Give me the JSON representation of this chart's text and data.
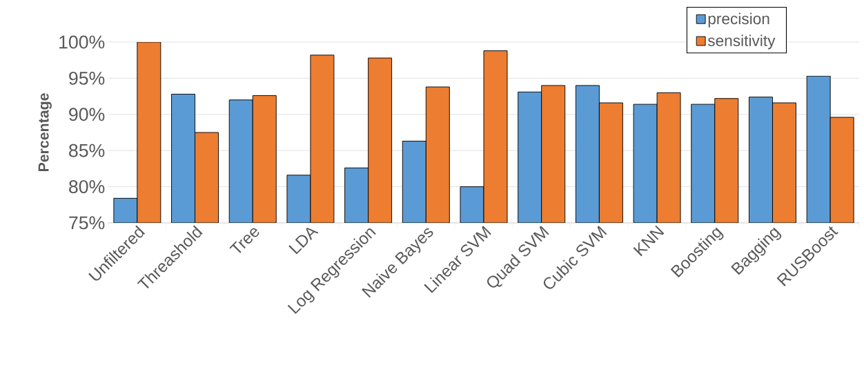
{
  "chart_data": {
    "type": "bar",
    "ylabel": "Percentage",
    "categories": [
      "Unfiltered",
      "Threashold",
      "Tree",
      "LDA",
      "Log Regression",
      "Naive Bayes",
      "Linear SVM",
      "Quad SVM",
      "Cubic SVM",
      "KNN",
      "Boosting",
      "Bagging",
      "RUSBoost"
    ],
    "series": [
      {
        "name": "precision",
        "color": "#5b9bd5",
        "values": [
          78.4,
          92.8,
          92.0,
          81.6,
          82.6,
          86.3,
          80.0,
          93.1,
          94.0,
          91.4,
          91.4,
          92.4,
          95.3
        ]
      },
      {
        "name": "sensitivity",
        "color": "#ed7d31",
        "values": [
          100.0,
          87.5,
          92.6,
          98.2,
          97.8,
          93.8,
          98.8,
          94.0,
          91.6,
          93.0,
          92.2,
          91.6,
          89.6
        ]
      }
    ],
    "ylim": [
      75,
      100
    ],
    "yticks": [
      {
        "value": 75,
        "label": "75%"
      },
      {
        "value": 80,
        "label": "80%"
      },
      {
        "value": 85,
        "label": "85%"
      },
      {
        "value": 90,
        "label": "90%"
      },
      {
        "value": 95,
        "label": "95%"
      },
      {
        "value": 100,
        "label": "100%"
      }
    ],
    "grid": "y",
    "legend": "top right"
  }
}
